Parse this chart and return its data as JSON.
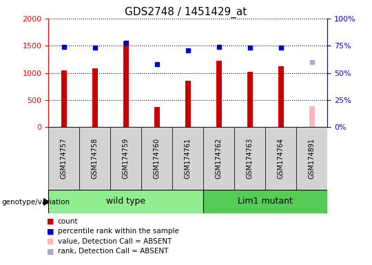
{
  "title": "GDS2748 / 1451429_at",
  "samples": [
    "GSM174757",
    "GSM174758",
    "GSM174759",
    "GSM174760",
    "GSM174761",
    "GSM174762",
    "GSM174763",
    "GSM174764",
    "GSM174891"
  ],
  "counts": [
    1050,
    1080,
    1580,
    370,
    860,
    1220,
    1020,
    1120,
    null
  ],
  "percentile_ranks": [
    74,
    73,
    78,
    58,
    71,
    74,
    73,
    73,
    null
  ],
  "absent_value": 390,
  "absent_rank": 60,
  "absent_index": 8,
  "wild_type_indices": [
    0,
    1,
    2,
    3,
    4
  ],
  "lim1_mutant_indices": [
    5,
    6,
    7,
    8
  ],
  "ylim_left": [
    0,
    2000
  ],
  "ylim_right": [
    0,
    100
  ],
  "yticks_left": [
    0,
    500,
    1000,
    1500,
    2000
  ],
  "ytick_labels_left": [
    "0",
    "500",
    "1000",
    "1500",
    "2000"
  ],
  "yticks_right": [
    0,
    25,
    50,
    75,
    100
  ],
  "ytick_labels_right": [
    "0%",
    "25%",
    "50%",
    "75%",
    "100%"
  ],
  "bar_color": "#cc0000",
  "absent_bar_color": "#ffb6b6",
  "dot_color": "#0000cc",
  "absent_dot_color": "#aaaacc",
  "bg_color_plot": "#ffffff",
  "sample_bg_color": "#d3d3d3",
  "wild_type_color": "#90ee90",
  "lim1_color": "#55cc55"
}
